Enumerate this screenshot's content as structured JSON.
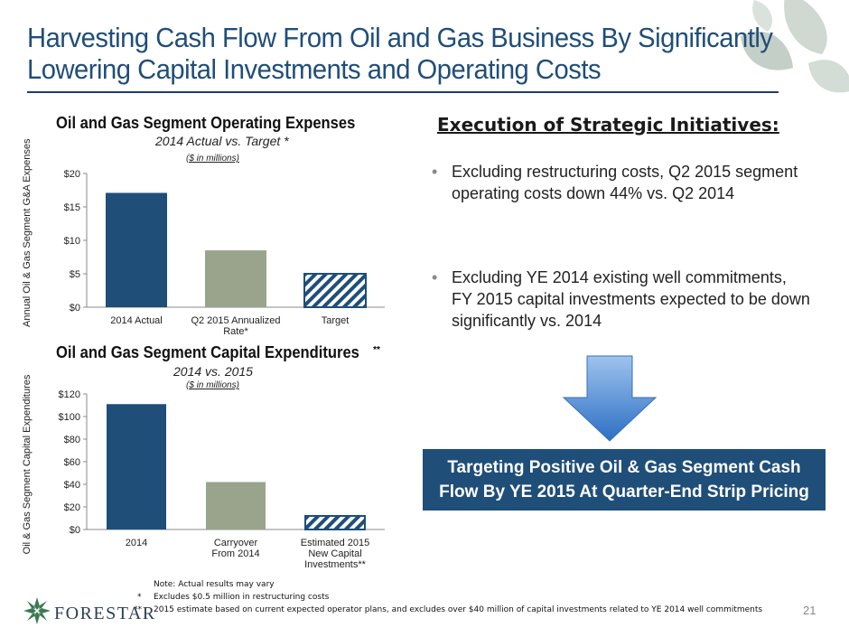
{
  "title": {
    "line1": "Harvesting Cash Flow From Oil and Gas Business By Significantly",
    "line2": "Lowering Capital Investments and Operating Costs"
  },
  "chart_data": [
    {
      "type": "bar",
      "title": "Oil and Gas Segment Operating Expenses",
      "subtitle": "2014 Actual vs. Target *",
      "units": "($ in millions)",
      "ylabel": "Annual Oil & Gas Segment G&A Expenses",
      "categories": [
        "2014 Actual",
        "Q2 2015 Annualized Rate*",
        "Target"
      ],
      "category_lines": [
        [
          "2014 Actual"
        ],
        [
          "Q2 2015 Annualized",
          "Rate*"
        ],
        [
          "Target"
        ]
      ],
      "values": [
        17.1,
        8.5,
        5.0
      ],
      "colors": [
        "#1f4e79",
        "#9aa48c",
        "hatch"
      ],
      "ylim": [
        0,
        20
      ],
      "yticks": [
        0,
        5,
        10,
        15,
        20
      ],
      "yticklabels": [
        "$0",
        "$5",
        "$10",
        "$15",
        "$20"
      ]
    },
    {
      "type": "bar",
      "title": "Oil and Gas Segment Capital Expenditures",
      "title_mark": "**",
      "subtitle": "2014 vs. 2015",
      "units": "($ in millions)",
      "ylabel": "Oil & Gas Segment Capital Expenditures",
      "categories": [
        "2014",
        "Carryover From 2014",
        "Estimated 2015 New Capital Investments**"
      ],
      "category_lines": [
        [
          "2014"
        ],
        [
          "Carryover",
          "From 2014"
        ],
        [
          "Estimated 2015",
          "New Capital",
          "Investments**"
        ]
      ],
      "values": [
        111,
        42,
        12
      ],
      "colors": [
        "#1f4e79",
        "#9aa48c",
        "hatch"
      ],
      "ylim": [
        0,
        120
      ],
      "yticks": [
        0,
        20,
        40,
        60,
        80,
        100,
        120
      ],
      "yticklabels": [
        "$0",
        "$20",
        "$40",
        "$60",
        "$80",
        "$100",
        "$120"
      ]
    }
  ],
  "execution": {
    "heading": "Execution of Strategic Initiatives:",
    "bullets": [
      "Excluding restructuring costs, Q2 2015 segment operating costs down 44% vs. Q2 2014",
      "Excluding YE 2014 existing well commitments, FY 2015 capital investments expected to be down significantly vs. 2014"
    ],
    "bullet_symbol": "•"
  },
  "target_box": {
    "line1": "Targeting Positive Oil & Gas Segment Cash",
    "line2": "Flow By YE 2015 At Quarter-End Strip Pricing"
  },
  "notes": {
    "note": "Note: Actual results may vary",
    "star1_mark": "*",
    "star1": "Excludes $0.5 million in restructuring costs",
    "star2_mark": "**",
    "star2": "2015 estimate based on current expected operator plans, and excludes over $40 million of capital investments related to YE 2014 well commitments"
  },
  "footer": {
    "brand": "FORESTAR",
    "page_number": "21"
  },
  "colors": {
    "title": "#1f4e79",
    "bar_primary": "#1f4e79",
    "bar_secondary": "#9aa48c",
    "box": "#1f4e79",
    "arrow": "#4a86d4",
    "leaves": "#c9d4cc"
  }
}
